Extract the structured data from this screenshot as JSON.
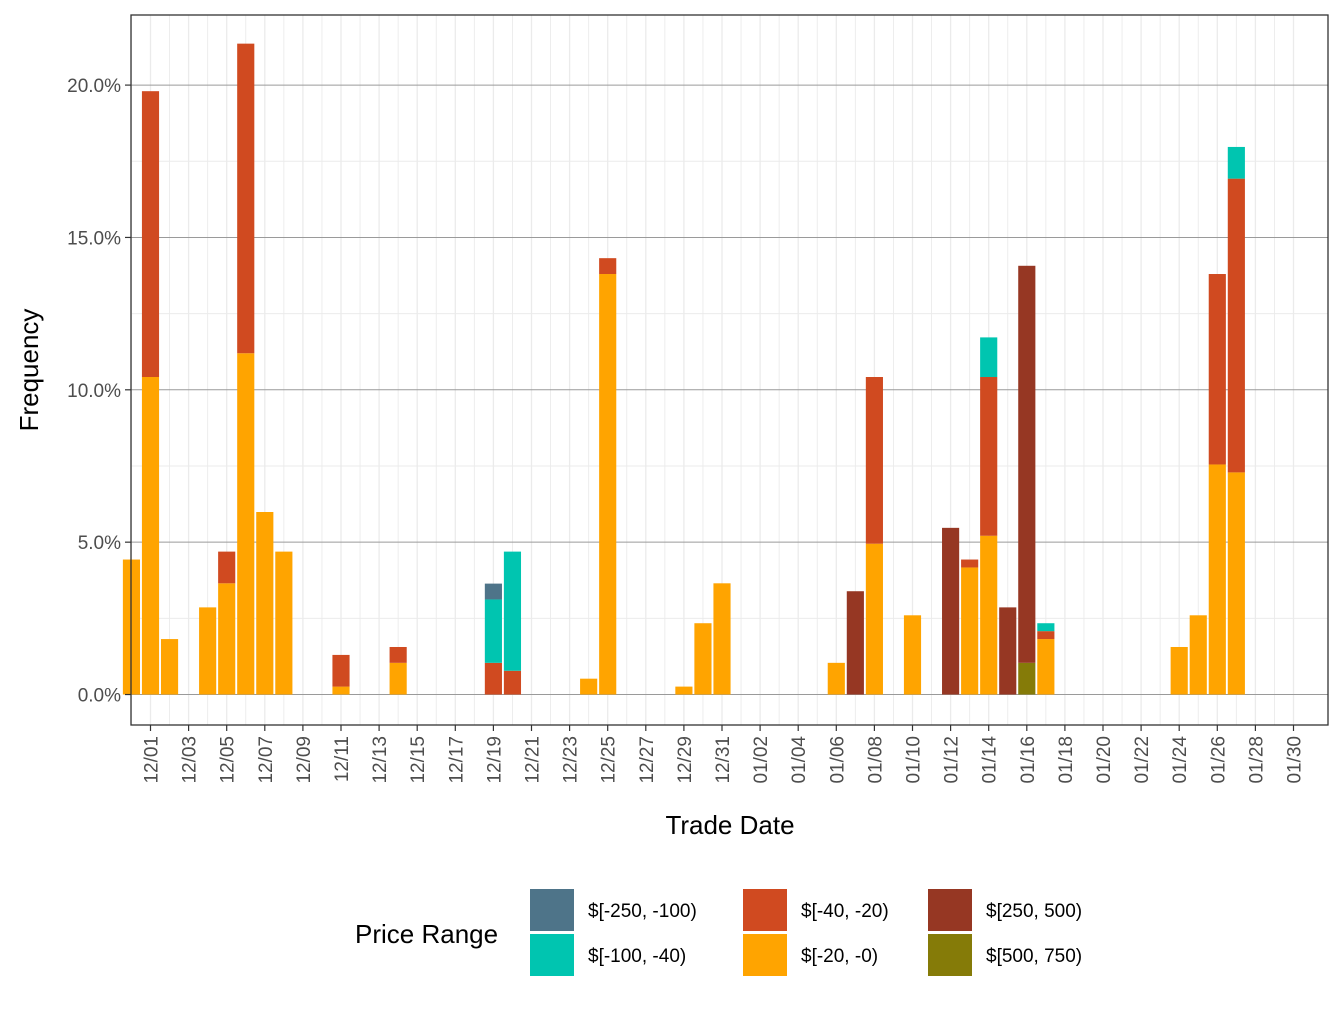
{
  "chart_data": {
    "type": "bar",
    "stacked": true,
    "xlabel": "Trade Date",
    "ylabel": "Frequency",
    "ylim": [
      -1.0,
      22.3
    ],
    "y_ticks": [
      0,
      5,
      10,
      15,
      20
    ],
    "y_tick_labels": [
      "0.0%",
      "5.0%",
      "10.0%",
      "15.0%",
      "20.0%"
    ],
    "x_tick_labels": [
      "12/01",
      "12/03",
      "12/05",
      "12/07",
      "12/09",
      "12/11",
      "12/13",
      "12/15",
      "12/17",
      "12/19",
      "12/21",
      "12/23",
      "12/25",
      "12/27",
      "12/29",
      "12/31",
      "01/02",
      "01/04",
      "01/06",
      "01/08",
      "01/10",
      "01/12",
      "01/14",
      "01/16",
      "01/18",
      "01/20",
      "01/22",
      "01/24",
      "01/26",
      "01/28",
      "01/30"
    ],
    "grid": true,
    "legend": {
      "title": "Price Range",
      "position": "bottom",
      "entries": [
        {
          "label": "$[-250, -100)",
          "color": "#4E7489"
        },
        {
          "label": "$[-100, -40)",
          "color": "#00C5B0"
        },
        {
          "label": "$[-40, -20)",
          "color": "#D04A20"
        },
        {
          "label": "$[-20, -0)",
          "color": "#FFA400"
        },
        {
          "label": "$[250, 500)",
          "color": "#963723"
        },
        {
          "label": "$[500, 750)",
          "color": "#857B08"
        }
      ]
    },
    "categories": [
      "11/30",
      "12/01",
      "12/02",
      "12/04",
      "12/05",
      "12/06",
      "12/07",
      "12/08",
      "12/11",
      "12/14",
      "12/19",
      "12/20",
      "12/24",
      "12/25",
      "12/29",
      "12/30",
      "12/31",
      "01/06",
      "01/07",
      "01/08",
      "01/10",
      "01/12",
      "01/13",
      "01/14",
      "01/15",
      "01/16",
      "01/17",
      "01/24",
      "01/25",
      "01/26",
      "01/27"
    ],
    "series": [
      {
        "name": "$[500, 750)",
        "color": "#857B08",
        "values": [
          0,
          0,
          0,
          0,
          0,
          0,
          0,
          0,
          0,
          0,
          0,
          0,
          0,
          0,
          0,
          0,
          0,
          0,
          0,
          0,
          0,
          0,
          0,
          0,
          0,
          1.04,
          0,
          0,
          0,
          0,
          0
        ]
      },
      {
        "name": "$[250, 500)",
        "color": "#963723",
        "values": [
          0,
          0,
          0,
          0,
          0,
          0,
          0,
          0,
          0,
          0,
          0,
          0,
          0,
          0,
          0,
          0,
          0,
          0,
          3.39,
          0,
          0,
          5.47,
          0,
          0,
          2.86,
          13.03,
          0,
          0,
          0,
          0,
          0
        ]
      },
      {
        "name": "$[-20, -0)",
        "color": "#FFA400",
        "values": [
          4.43,
          10.42,
          1.82,
          2.86,
          3.65,
          11.2,
          5.99,
          4.69,
          0.26,
          1.04,
          0,
          0,
          0.52,
          13.8,
          0.26,
          2.34,
          3.65,
          1.04,
          0,
          4.95,
          2.6,
          0,
          4.17,
          5.21,
          0,
          0,
          1.82,
          1.56,
          2.6,
          7.55,
          7.29
        ]
      },
      {
        "name": "$[-40, -20)",
        "color": "#D04A20",
        "values": [
          0,
          9.38,
          0,
          0,
          1.04,
          10.16,
          0,
          0,
          1.04,
          0.52,
          1.04,
          0.78,
          0,
          0.52,
          0,
          0,
          0,
          0,
          0,
          5.47,
          0,
          0,
          0.26,
          5.21,
          0,
          0,
          0.26,
          0,
          0,
          6.25,
          9.64
        ]
      },
      {
        "name": "$[-100, -40)",
        "color": "#00C5B0",
        "values": [
          0,
          0,
          0,
          0,
          0,
          0,
          0,
          0,
          0,
          0,
          2.08,
          3.91,
          0,
          0,
          0,
          0,
          0,
          0,
          0,
          0,
          0,
          0,
          0,
          1.3,
          0,
          0,
          0.26,
          0,
          0,
          0,
          1.04
        ]
      },
      {
        "name": "$[-250, -100)",
        "color": "#4E7489",
        "values": [
          0,
          0,
          0,
          0,
          0,
          0,
          0,
          0,
          0,
          0,
          0.52,
          0,
          0,
          0,
          0,
          0,
          0,
          0,
          0,
          0,
          0,
          0,
          0,
          0,
          0,
          0,
          0,
          0,
          0,
          0,
          0
        ]
      }
    ]
  }
}
